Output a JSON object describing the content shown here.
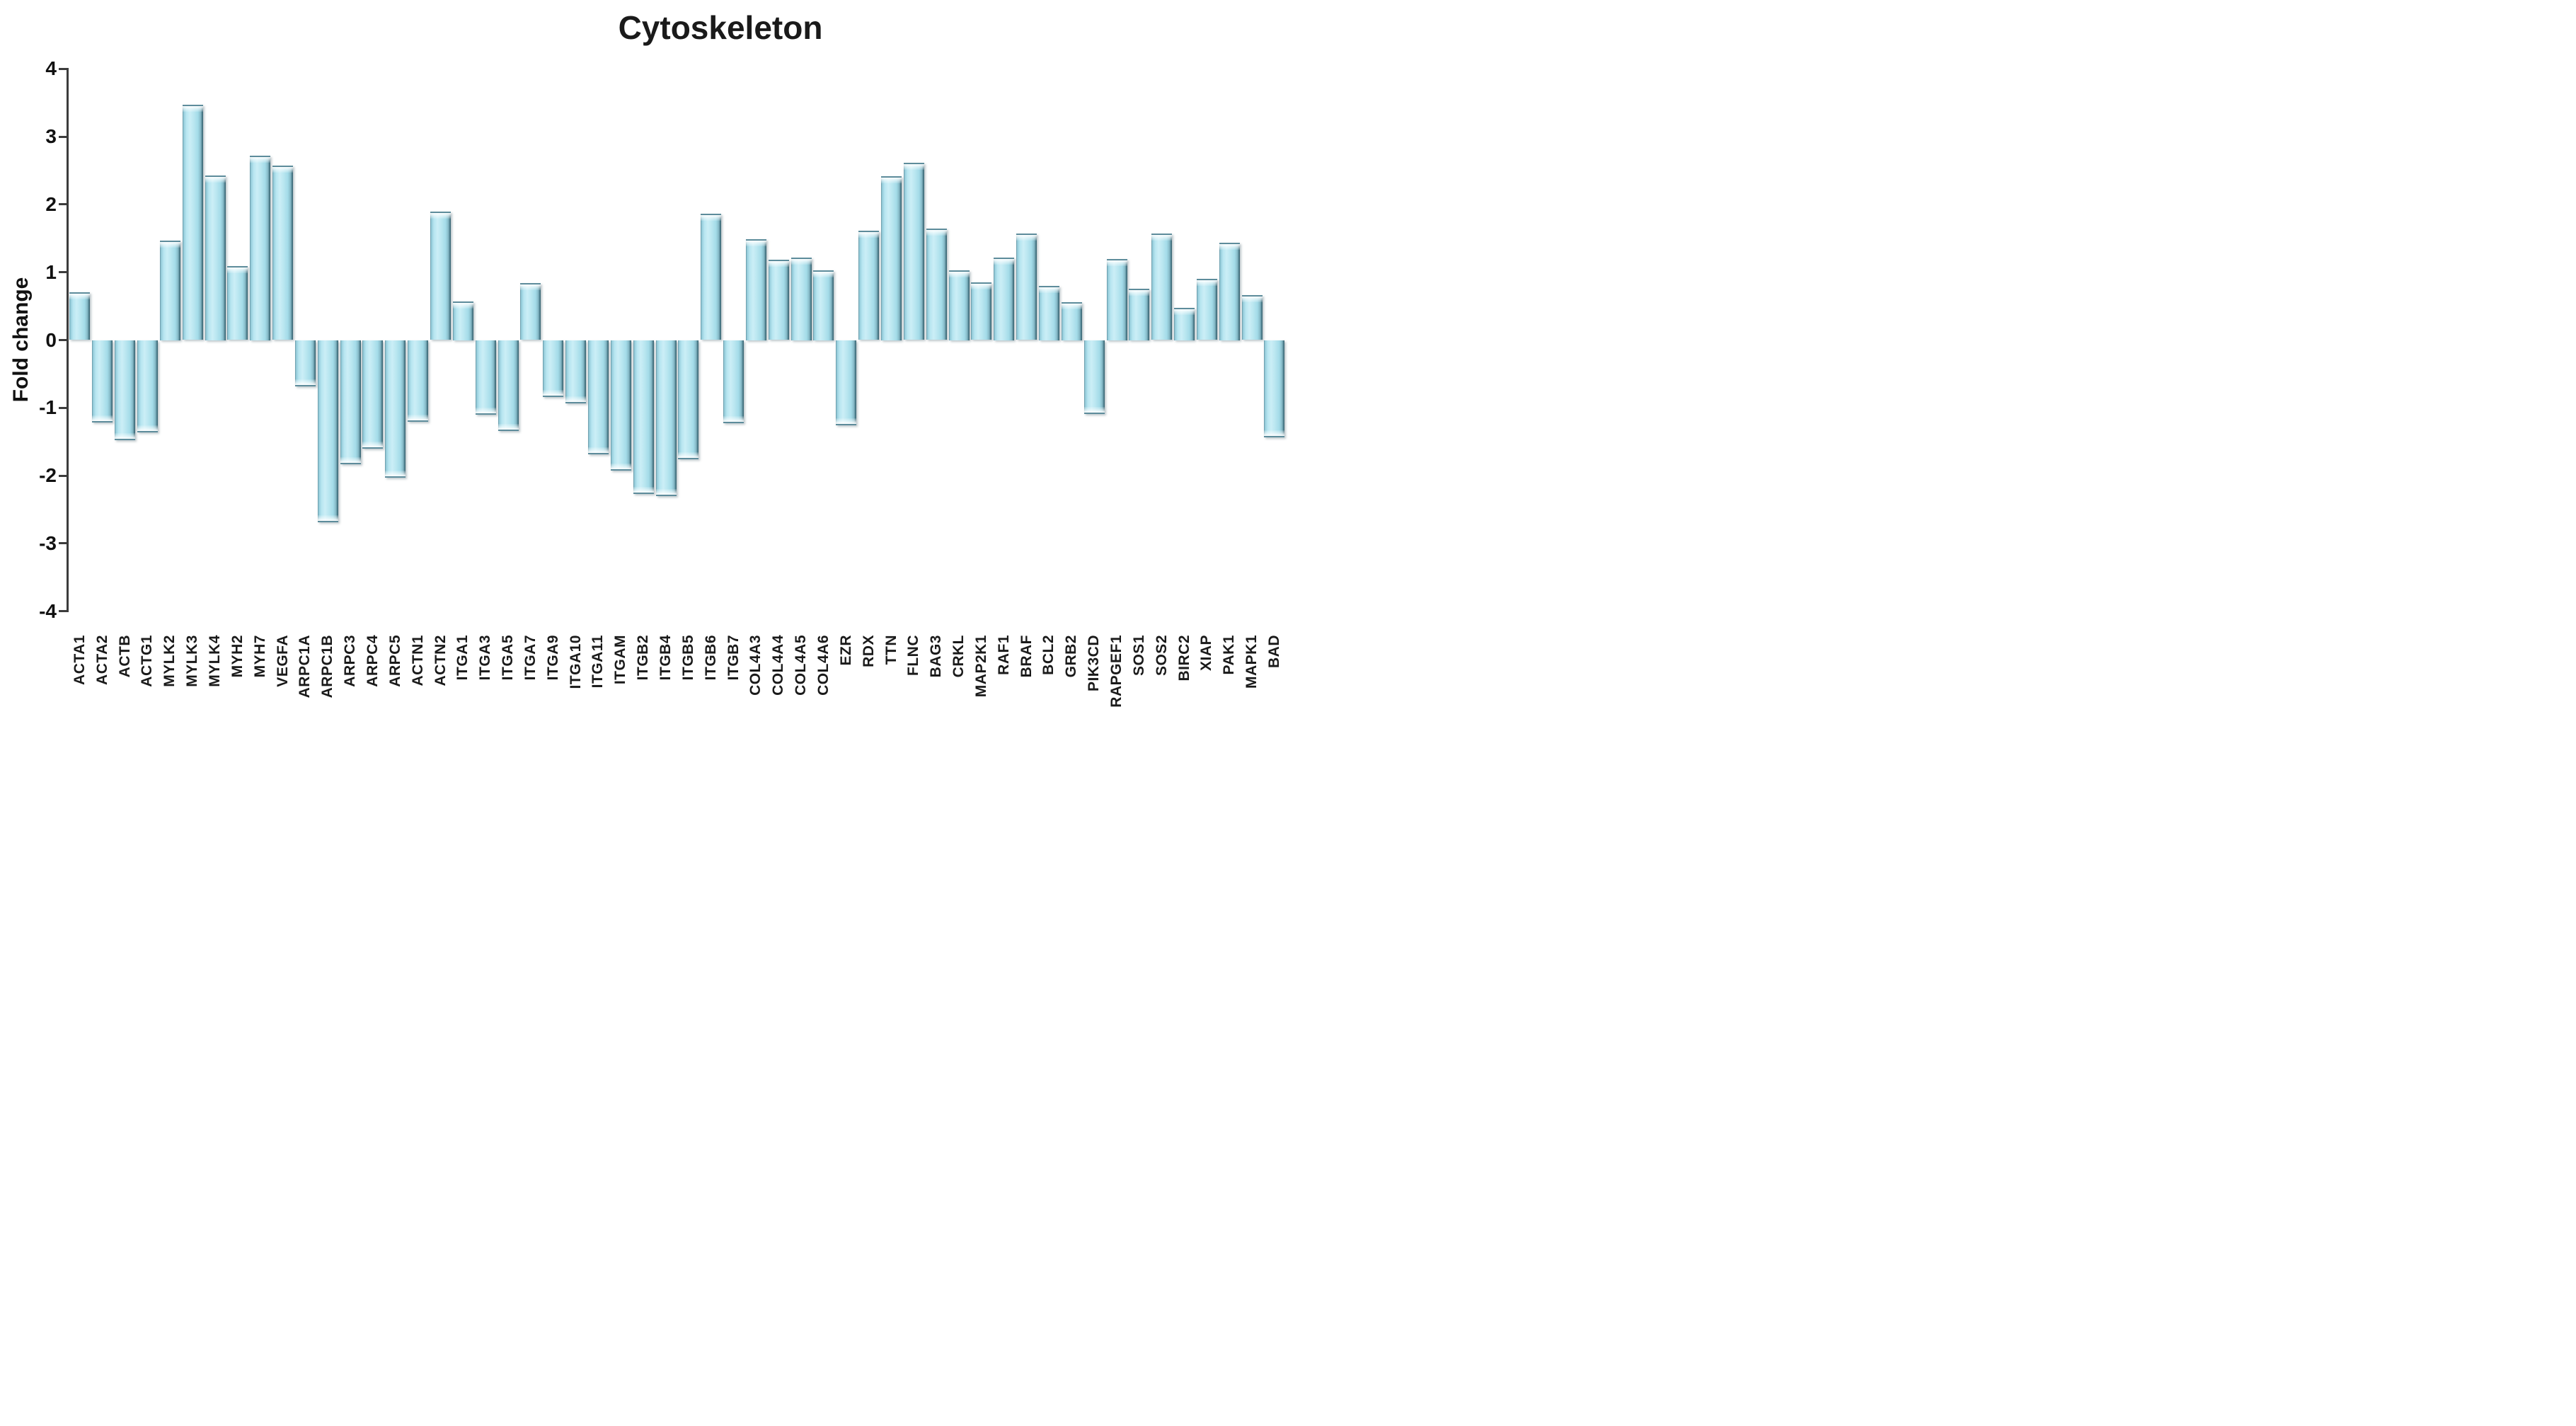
{
  "title": "Cytoskeleton",
  "y_axis": {
    "label": "Fold change",
    "tick_labels": [
      "4",
      "3",
      "2",
      "1",
      "0",
      "-1",
      "-2",
      "-3",
      "-4"
    ]
  },
  "chart_data": {
    "type": "bar",
    "title": "Cytoskeleton",
    "xlabel": "",
    "ylabel": "Fold change",
    "ylim": [
      -4,
      4
    ],
    "yticks": [
      4,
      3,
      2,
      1,
      0,
      -1,
      -2,
      -3,
      -4
    ],
    "grid": false,
    "legend": false,
    "bar_color": "#aee3ee",
    "bar_edge_color": "#3d636e",
    "categories": [
      "ACTA1",
      "ACTA2",
      "ACTB",
      "ACTG1",
      "MYLK2",
      "MYLK3",
      "MYLK4",
      "MYH2",
      "MYH7",
      "VEGFA",
      "ARPC1A",
      "ARPC1B",
      "ARPC3",
      "ARPC4",
      "ARPC5",
      "ACTN1",
      "ACTN2",
      "ITGA1",
      "ITGA3",
      "ITGA5",
      "ITGA7",
      "ITGA9",
      "ITGA10",
      "ITGA11",
      "ITGAM",
      "ITGB2",
      "ITGB4",
      "ITGB5",
      "ITGB6",
      "ITGB7",
      "COL4A3",
      "COL4A4",
      "COL4A5",
      "COL4A6",
      "EZR",
      "RDX",
      "TTN",
      "FLNC",
      "BAG3",
      "CRKL",
      "MAP2K1",
      "RAF1",
      "BRAF",
      "BCL2",
      "GRB2",
      "PIK3CD",
      "RAPGEF1",
      "SOS1",
      "SOS2",
      "BIRC2",
      "XIAP",
      "PAK1",
      "MAPK1",
      "BAD"
    ],
    "values": [
      0.7,
      -1.21,
      -1.47,
      -1.36,
      1.47,
      3.47,
      2.43,
      1.09,
      2.72,
      2.57,
      -0.68,
      -2.68,
      -1.83,
      -1.6,
      -2.02,
      -1.2,
      1.89,
      0.57,
      -1.1,
      -1.34,
      0.84,
      -0.84,
      -0.93,
      -1.68,
      -1.92,
      -2.27,
      -2.3,
      -1.75,
      1.86,
      -1.22,
      1.49,
      1.18,
      1.22,
      1.03,
      -1.25,
      1.61,
      2.42,
      2.61,
      1.64,
      1.03,
      0.85,
      1.22,
      1.57,
      0.8,
      0.56,
      -1.09,
      1.2,
      0.76,
      1.57,
      0.48,
      0.9,
      1.44,
      0.66,
      -1.43
    ]
  }
}
